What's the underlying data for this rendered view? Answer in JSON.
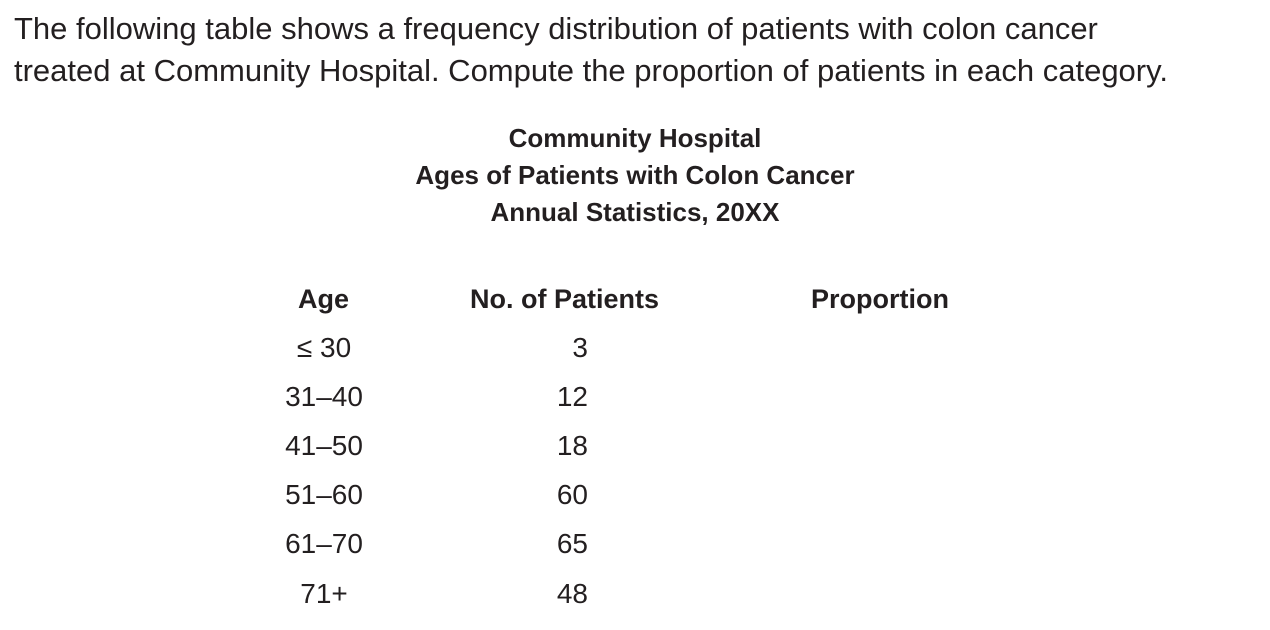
{
  "intro": {
    "line1": "The following table shows a frequency distribution of patients with colon cancer",
    "line2": "treated at Community Hospital. Compute the proportion of patients in each category."
  },
  "table_title": {
    "line1": "Community Hospital",
    "line2": "Ages of Patients with Colon Cancer",
    "line3": "Annual Statistics, 20XX"
  },
  "table": {
    "headers": [
      "Age",
      "No. of Patients",
      "Proportion"
    ],
    "rows": [
      {
        "age": "≤ 30",
        "patients": "3",
        "proportion": ""
      },
      {
        "age": "31–40",
        "patients": "12",
        "proportion": ""
      },
      {
        "age": "41–50",
        "patients": "18",
        "proportion": ""
      },
      {
        "age": "51–60",
        "patients": "60",
        "proportion": ""
      },
      {
        "age": "61–70",
        "patients": "65",
        "proportion": ""
      },
      {
        "age": "71+",
        "patients": "48",
        "proportion": ""
      }
    ]
  }
}
